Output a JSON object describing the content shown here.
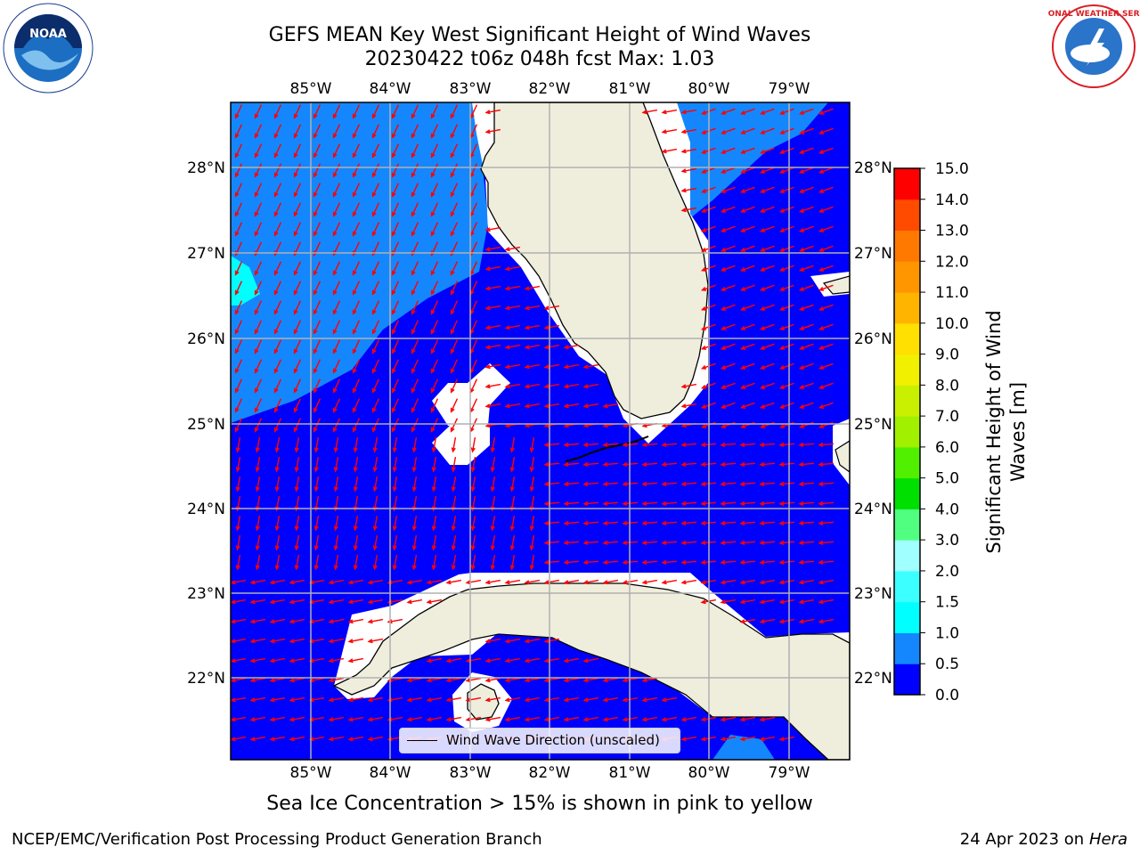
{
  "header": {
    "title_line1": "GEFS MEAN Key West Significant Height of Wind Waves",
    "title_line2": "20230422 t06z 048h fcst   Max: 1.03"
  },
  "logos": {
    "left": {
      "icon": "noaa-logo-icon",
      "text": "NOAA"
    },
    "right": {
      "icon": "nws-logo-icon",
      "text": "NATIONAL WEATHER SERVICE"
    }
  },
  "map": {
    "lon_labels": [
      "85°W",
      "84°W",
      "83°W",
      "82°W",
      "81°W",
      "80°W",
      "79°W"
    ],
    "lat_labels": [
      "28°N",
      "27°N",
      "26°N",
      "25°N",
      "24°N",
      "23°N",
      "22°N"
    ],
    "colors": {
      "land": "#efeedd",
      "wave_low": "#0000ff",
      "wave_mid": "#1487ff",
      "wave_high": "#00ffff",
      "arrow": "#ff0000",
      "grid": "#b0b0b0"
    },
    "legend": {
      "label": "Wind Wave Direction (unscaled)"
    }
  },
  "colorbar": {
    "label_line1": "Significant Height of Wind",
    "label_line2": "Waves [m]",
    "ticks": [
      "0.0",
      "0.5",
      "1.0",
      "1.5",
      "2.0",
      "3.0",
      "4.0",
      "5.0",
      "6.0",
      "7.0",
      "8.0",
      "9.0",
      "10.0",
      "11.0",
      "12.0",
      "13.0",
      "14.0",
      "15.0"
    ],
    "colors": [
      "#0000ff",
      "#1487ff",
      "#00ffff",
      "#3cffff",
      "#a0ffff",
      "#50ff80",
      "#00e000",
      "#50f000",
      "#a0f000",
      "#c8f000",
      "#f0f000",
      "#ffe000",
      "#ffb400",
      "#ff9600",
      "#ff7800",
      "#ff4b00",
      "#ff0000"
    ]
  },
  "footer": {
    "sea_ice_note": "Sea Ice Concentration > 15% is shown in pink to yellow",
    "left": "NCEP/EMC/Verification Post Processing Product Generation Branch",
    "right_prefix": "24 Apr 2023 on ",
    "right_host": "Hera"
  }
}
